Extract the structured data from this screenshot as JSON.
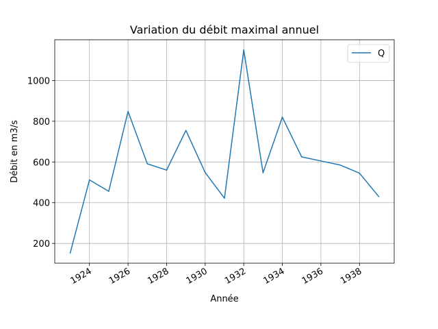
{
  "chart_data": {
    "type": "line",
    "title": "Variation du débit maximal annuel",
    "xlabel": "Année",
    "ylabel": "Débit en m3/s",
    "xlim": [
      1922.2,
      1939.8
    ],
    "ylim": [
      103,
      1200
    ],
    "x_ticks": [
      1924,
      1926,
      1928,
      1930,
      1932,
      1934,
      1936,
      1938
    ],
    "y_ticks": [
      200,
      400,
      600,
      800,
      1000
    ],
    "grid": true,
    "legend_position": "top-right",
    "series": [
      {
        "name": "Q",
        "color": "#1f77b4",
        "x": [
          1923,
          1924,
          1925,
          1926,
          1927,
          1928,
          1929,
          1930,
          1931,
          1932,
          1933,
          1934,
          1935,
          1936,
          1937,
          1938,
          1939
        ],
        "values": [
          153,
          512,
          456,
          848,
          591,
          560,
          755,
          548,
          422,
          1150,
          547,
          820,
          625,
          605,
          585,
          545,
          430
        ]
      }
    ]
  }
}
